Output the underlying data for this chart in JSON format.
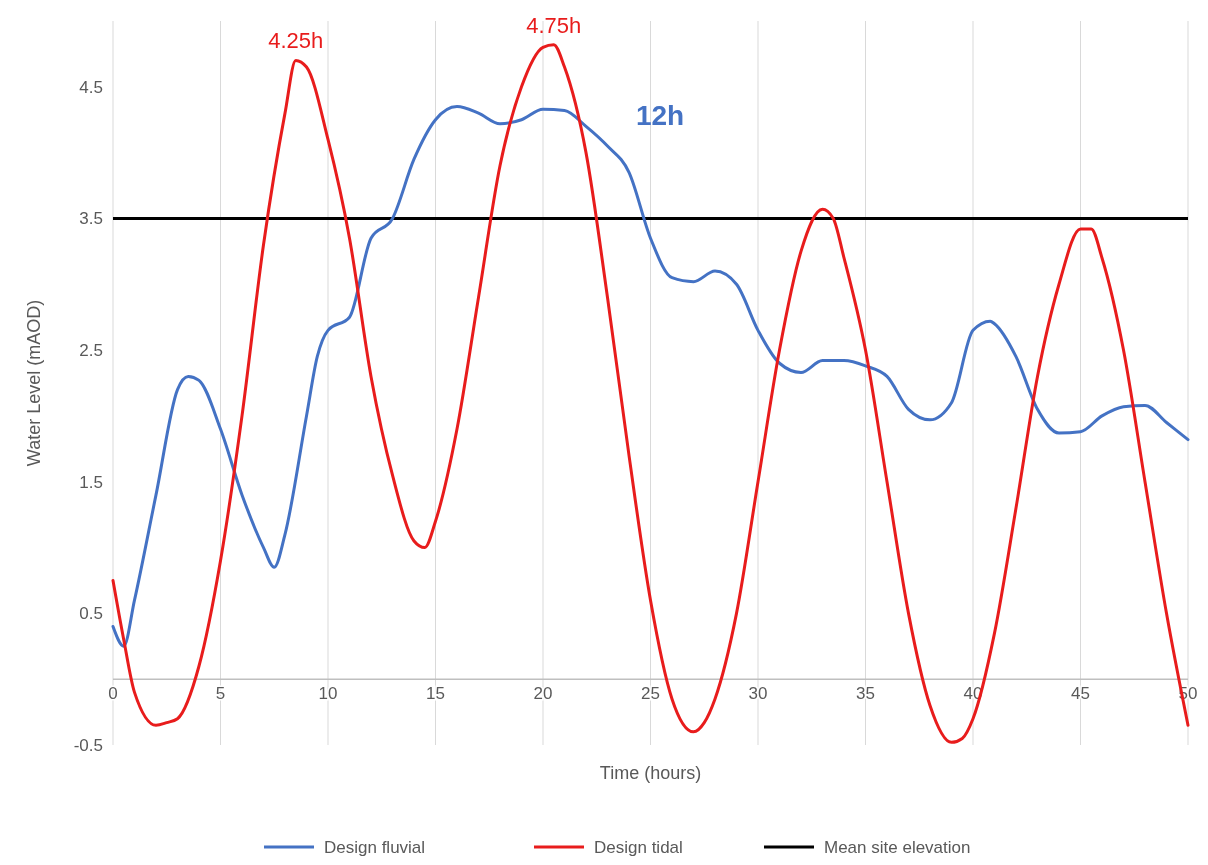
{
  "chart_data": {
    "type": "line",
    "xlabel": "Time (hours)",
    "ylabel": "Water Level (mAOD)",
    "xlim": [
      0,
      50
    ],
    "xticks": [
      0,
      5,
      10,
      15,
      20,
      25,
      30,
      35,
      40,
      45,
      50
    ],
    "ylim": [
      -0.5,
      5
    ],
    "yticks": [
      -0.5,
      0.5,
      1.5,
      2.5,
      3.5,
      4.5
    ],
    "grid": "x",
    "legend": "bottom",
    "line_style": "solid",
    "series": [
      {
        "name": "Design fluvial",
        "color": "#4472c4",
        "x": [
          0,
          0.5,
          1,
          2,
          3,
          3.5,
          4,
          5,
          6,
          7,
          7.5,
          8,
          9,
          9.5,
          10,
          11,
          12,
          13,
          14,
          15,
          16,
          17,
          18,
          19,
          20,
          21,
          22,
          23,
          24,
          25,
          26,
          27,
          28,
          29,
          30,
          31,
          32,
          33,
          34,
          35,
          36,
          37,
          38,
          39,
          40,
          40.8,
          41,
          42,
          43,
          44,
          45,
          46,
          47,
          48,
          49,
          50
        ],
        "values": [
          0.4,
          0.25,
          0.6,
          1.4,
          2.2,
          2.3,
          2.27,
          1.9,
          1.4,
          1.0,
          0.85,
          1.1,
          2.0,
          2.45,
          2.65,
          2.75,
          3.35,
          3.5,
          3.95,
          4.25,
          4.35,
          4.3,
          4.22,
          4.25,
          4.33,
          4.32,
          4.2,
          4.05,
          3.85,
          3.35,
          3.05,
          3.02,
          3.1,
          3.0,
          2.65,
          2.4,
          2.33,
          2.42,
          2.42,
          2.38,
          2.3,
          2.05,
          1.97,
          2.1,
          2.65,
          2.72,
          2.7,
          2.45,
          2.05,
          1.87,
          1.88,
          2.0,
          2.07,
          2.08,
          1.95,
          1.82
        ]
      },
      {
        "name": "Design tidal",
        "color": "#e81c1c",
        "x": [
          0,
          0.5,
          1,
          2,
          2.5,
          3,
          4,
          5,
          6,
          7,
          8,
          8.5,
          9,
          10,
          11,
          12,
          13,
          14,
          14.5,
          15,
          16,
          17,
          18,
          19,
          20,
          20.5,
          21,
          22,
          23,
          24,
          25,
          26,
          27,
          27.5,
          28,
          29,
          30,
          31,
          32,
          33,
          33.5,
          34,
          35,
          36,
          37,
          38,
          39,
          39.5,
          40,
          41,
          42,
          43,
          44,
          45,
          45.5,
          46,
          47,
          48,
          49,
          50
        ],
        "values": [
          0.75,
          0.3,
          -0.1,
          -0.35,
          -0.33,
          -0.3,
          0.1,
          0.9,
          2.0,
          3.3,
          4.3,
          4.7,
          4.65,
          4.1,
          3.35,
          2.3,
          1.55,
          1.05,
          1.0,
          1.2,
          1.9,
          2.9,
          3.9,
          4.5,
          4.8,
          4.82,
          4.65,
          4.0,
          2.9,
          1.7,
          0.6,
          -0.15,
          -0.4,
          -0.33,
          -0.15,
          0.5,
          1.5,
          2.5,
          3.25,
          3.57,
          3.5,
          3.2,
          2.5,
          1.5,
          0.5,
          -0.2,
          -0.48,
          -0.45,
          -0.3,
          0.35,
          1.3,
          2.3,
          3.0,
          3.42,
          3.42,
          3.2,
          2.5,
          1.5,
          0.5,
          -0.35
        ]
      }
    ],
    "ref_lines": [
      {
        "axis": "y",
        "value": 3.5,
        "label": "Mean site elevation",
        "color": "#000000"
      }
    ],
    "annotations": [
      {
        "text": "4.25h",
        "x": 8.5,
        "y": 4.7
      },
      {
        "text": "4.75h",
        "x": 20.5,
        "y": 4.82
      },
      "12h"
    ]
  }
}
